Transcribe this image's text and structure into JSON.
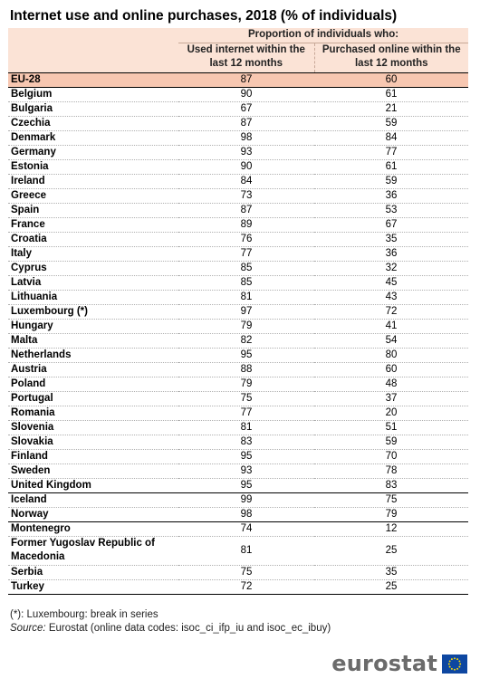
{
  "title": "Internet use and online purchases, 2018 (% of individuals)",
  "header": {
    "super": "Proportion of individuals who:",
    "col1_line1": "Used internet within the",
    "col1_line2": "last 12 months",
    "col2_line1": "Purchased online within the",
    "col2_line2": "last 12 months"
  },
  "rows": [
    {
      "name": "EU-28",
      "internet": "87",
      "purchased": "60"
    },
    {
      "name": "Belgium",
      "internet": "90",
      "purchased": "61"
    },
    {
      "name": "Bulgaria",
      "internet": "67",
      "purchased": "21"
    },
    {
      "name": "Czechia",
      "internet": "87",
      "purchased": "59"
    },
    {
      "name": "Denmark",
      "internet": "98",
      "purchased": "84"
    },
    {
      "name": "Germany",
      "internet": "93",
      "purchased": "77"
    },
    {
      "name": "Estonia",
      "internet": "90",
      "purchased": "61"
    },
    {
      "name": "Ireland",
      "internet": "84",
      "purchased": "59"
    },
    {
      "name": "Greece",
      "internet": "73",
      "purchased": "36"
    },
    {
      "name": "Spain",
      "internet": "87",
      "purchased": "53"
    },
    {
      "name": "France",
      "internet": "89",
      "purchased": "67"
    },
    {
      "name": "Croatia",
      "internet": "76",
      "purchased": "35"
    },
    {
      "name": "Italy",
      "internet": "77",
      "purchased": "36"
    },
    {
      "name": "Cyprus",
      "internet": "85",
      "purchased": "32"
    },
    {
      "name": "Latvia",
      "internet": "85",
      "purchased": "45"
    },
    {
      "name": "Lithuania",
      "internet": "81",
      "purchased": "43"
    },
    {
      "name": "Luxembourg (*)",
      "internet": "97",
      "purchased": "72"
    },
    {
      "name": "Hungary",
      "internet": "79",
      "purchased": "41"
    },
    {
      "name": "Malta",
      "internet": "82",
      "purchased": "54"
    },
    {
      "name": "Netherlands",
      "internet": "95",
      "purchased": "80"
    },
    {
      "name": "Austria",
      "internet": "88",
      "purchased": "60"
    },
    {
      "name": "Poland",
      "internet": "79",
      "purchased": "48"
    },
    {
      "name": "Portugal",
      "internet": "75",
      "purchased": "37"
    },
    {
      "name": "Romania",
      "internet": "77",
      "purchased": "20"
    },
    {
      "name": "Slovenia",
      "internet": "81",
      "purchased": "51"
    },
    {
      "name": "Slovakia",
      "internet": "83",
      "purchased": "59"
    },
    {
      "name": "Finland",
      "internet": "95",
      "purchased": "70"
    },
    {
      "name": "Sweden",
      "internet": "93",
      "purchased": "78"
    },
    {
      "name": "United Kingdom",
      "internet": "95",
      "purchased": "83"
    },
    {
      "name": "Iceland",
      "internet": "99",
      "purchased": "75"
    },
    {
      "name": "Norway",
      "internet": "98",
      "purchased": "79"
    },
    {
      "name": "Montenegro",
      "internet": "74",
      "purchased": "12"
    },
    {
      "name": "Former Yugoslav Republic of Macedonia",
      "internet": "81",
      "purchased": "25"
    },
    {
      "name": "Serbia",
      "internet": "75",
      "purchased": "35"
    },
    {
      "name": "Turkey",
      "internet": "72",
      "purchased": "25"
    }
  ],
  "footnote": "(*): Luxembourg: break in series",
  "source_label": "Source:",
  "source_text": "Eurostat (online data codes: isoc_ci_ifp_iu and isoc_ec_ibuy)",
  "logo_text": "eurostat",
  "colors": {
    "header_bg": "#fbe3d6",
    "eu_row_bg": "#f7c7b1",
    "logo_gray": "#6b6b6b",
    "flag_blue": "#0e47a1",
    "flag_star": "#ffdd00"
  }
}
